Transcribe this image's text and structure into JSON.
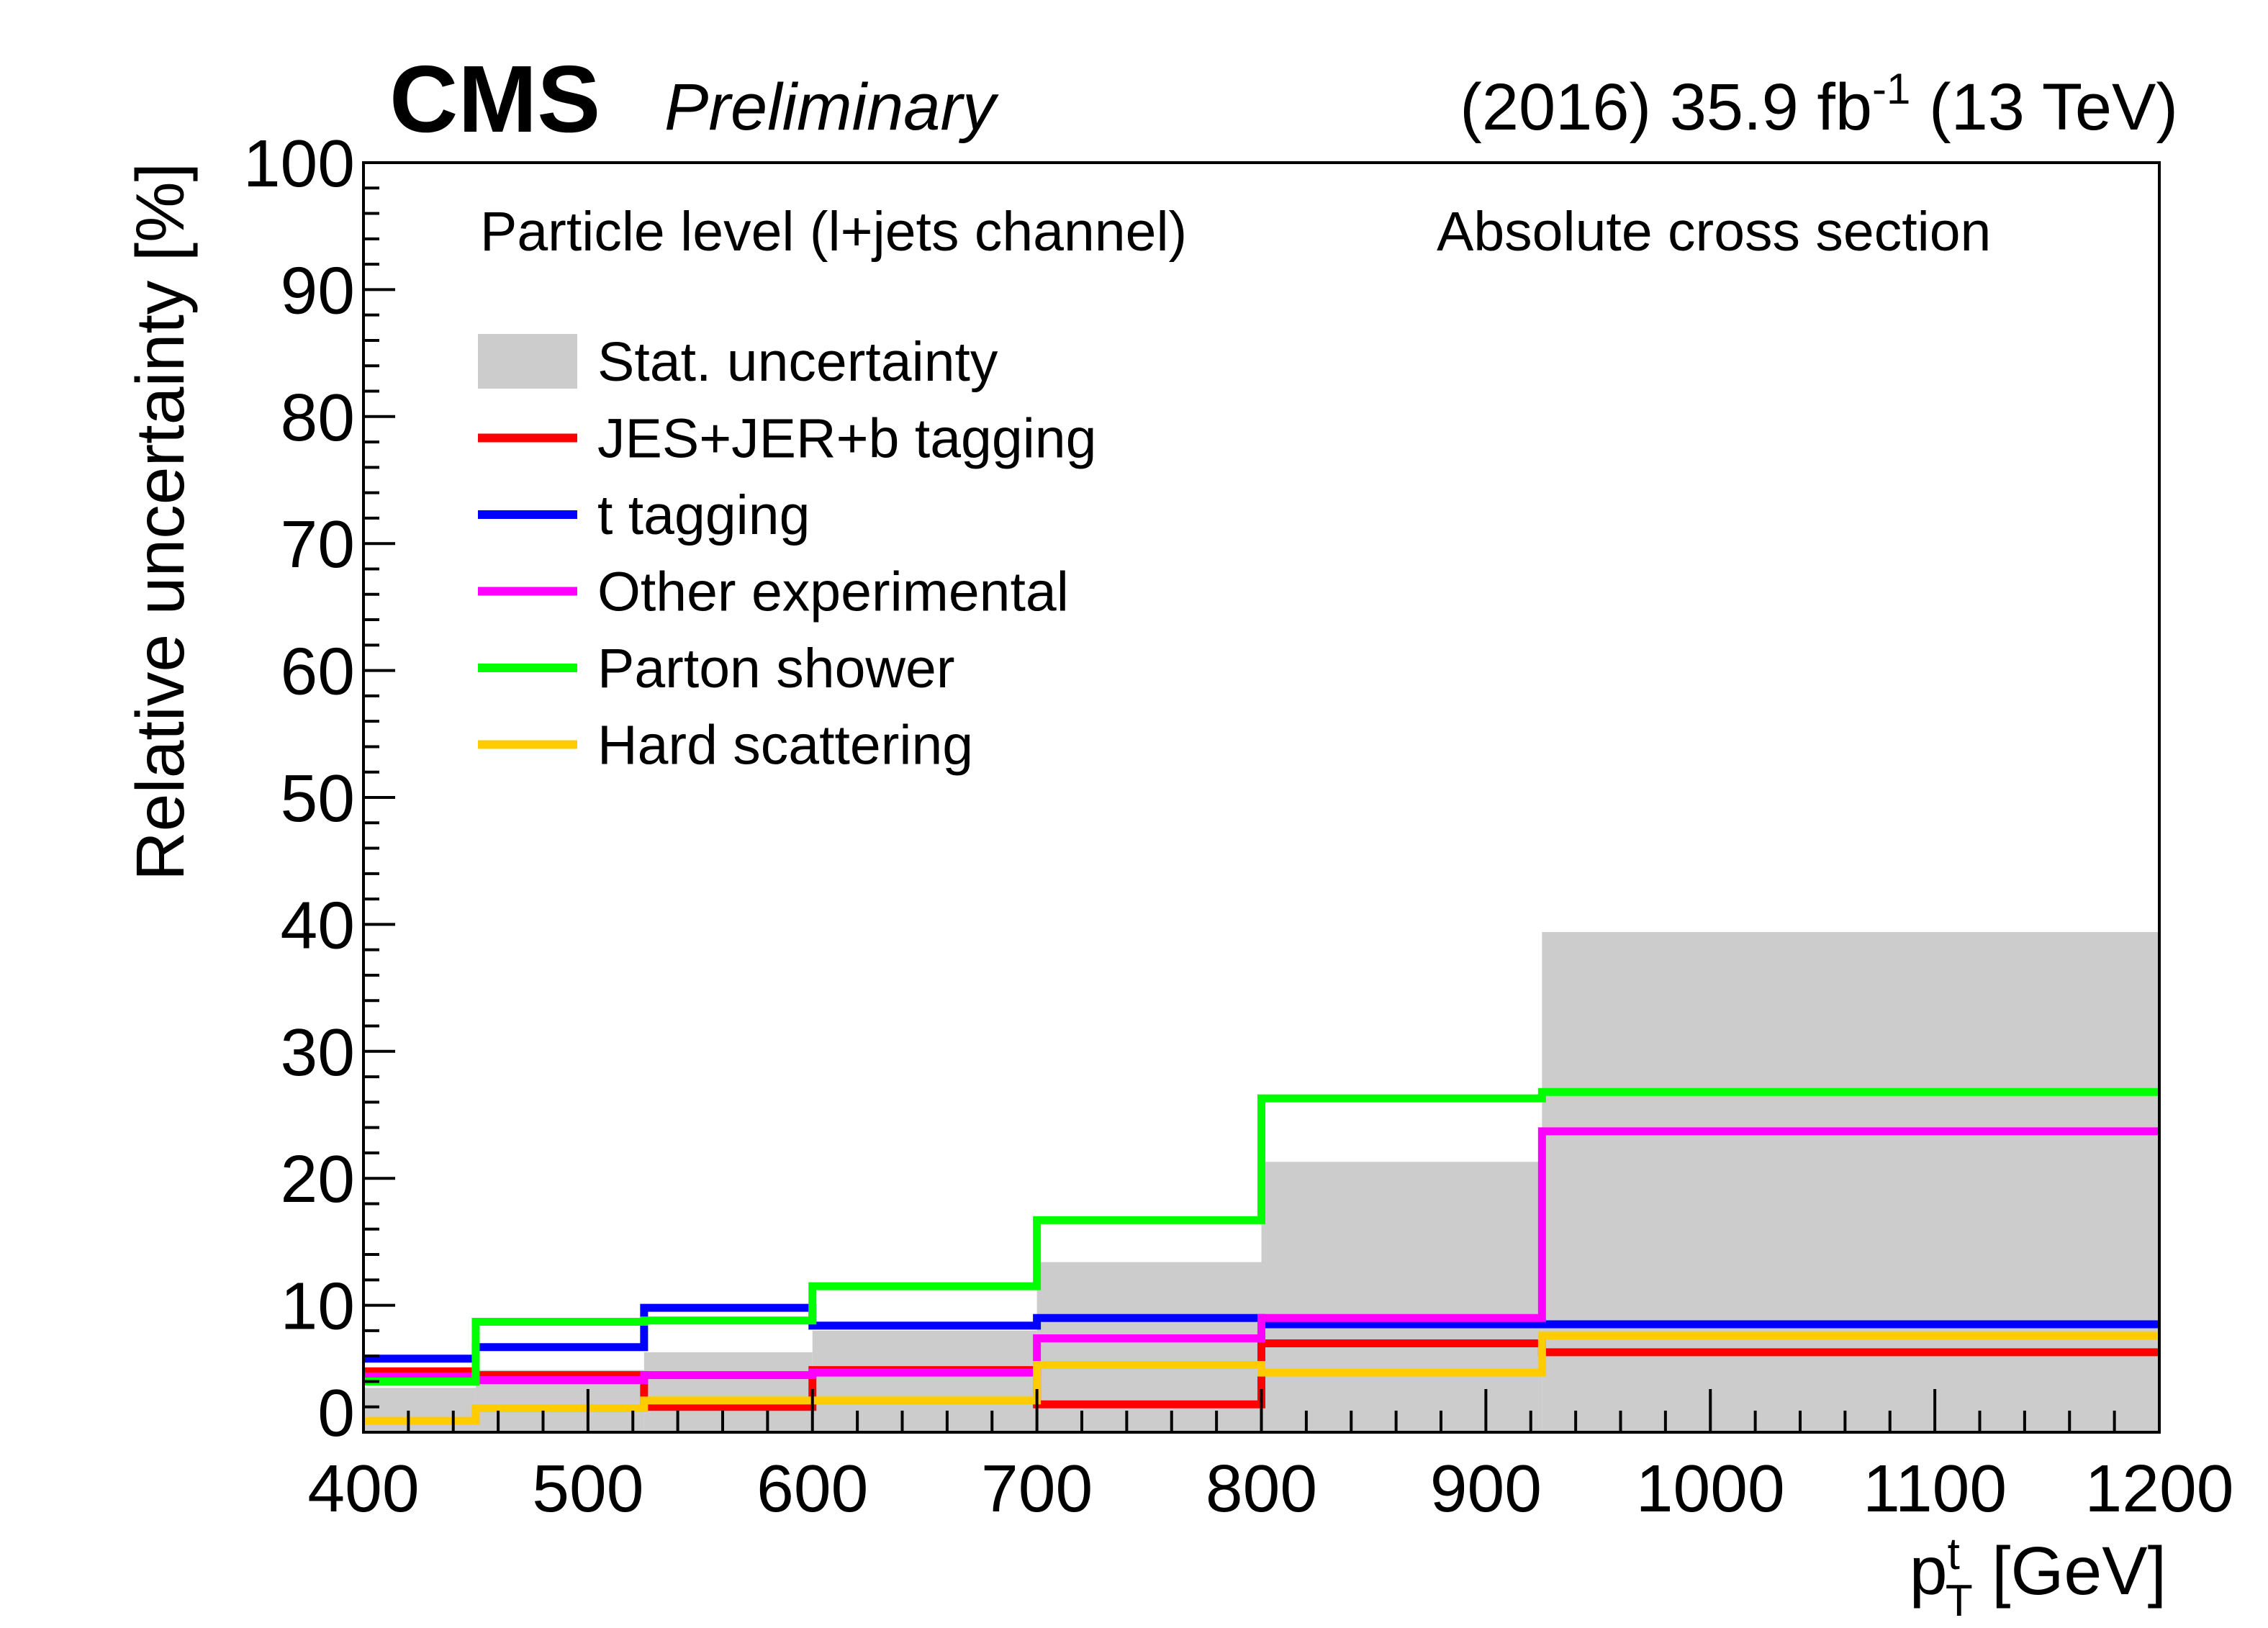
{
  "header": {
    "experiment": "CMS",
    "status": "Preliminary",
    "lumi_main": "(2016) 35.9 fb",
    "lumi_sup": "-1",
    "lumi_energy": " (13 TeV)"
  },
  "annotations": {
    "left": "Particle level (l+jets channel)",
    "right": "Absolute cross section"
  },
  "chart_data": {
    "type": "histogram-step",
    "title": "",
    "xlabel": {
      "main": "p",
      "sup": "t",
      "sub": "T",
      "unit": " [GeV]"
    },
    "ylabel": "Relative uncertainty [%]",
    "xlim": [
      400,
      1200
    ],
    "ylim": [
      0,
      100
    ],
    "x_ticks": [
      400,
      500,
      600,
      700,
      800,
      900,
      1000,
      1100,
      1200
    ],
    "y_ticks": [
      0,
      10,
      20,
      30,
      40,
      50,
      60,
      70,
      80,
      90,
      100
    ],
    "grid": false,
    "legend_position": "top-left",
    "bin_edges": [
      400,
      450,
      525,
      600,
      700,
      800,
      925,
      1200
    ],
    "stat": {
      "name": "Stat. uncertainty",
      "color": "#cccccc",
      "values": [
        3.5,
        4.9,
        6.3,
        8.0,
        13.4,
        21.3,
        39.4
      ]
    },
    "series": [
      {
        "name": "JES+JER+b tagging",
        "color": "#ff0000",
        "values": [
          4.8,
          4.5,
          2.0,
          4.9,
          2.2,
          7.0,
          6.3
        ]
      },
      {
        "name": "t tagging",
        "color": "#0000ff",
        "values": [
          5.8,
          6.7,
          9.8,
          8.4,
          9.0,
          8.5,
          8.5
        ]
      },
      {
        "name": "Other experimental",
        "color": "#ff00ff",
        "values": [
          4.4,
          4.1,
          4.5,
          4.7,
          7.4,
          9.0,
          23.7
        ]
      },
      {
        "name": "Parton shower",
        "color": "#00ff00",
        "values": [
          4.0,
          8.7,
          8.8,
          11.5,
          16.7,
          26.3,
          26.8
        ]
      },
      {
        "name": "Hard scattering",
        "color": "#ffcc00",
        "values": [
          0.9,
          1.9,
          2.5,
          2.5,
          5.3,
          4.7,
          7.6
        ]
      }
    ]
  }
}
